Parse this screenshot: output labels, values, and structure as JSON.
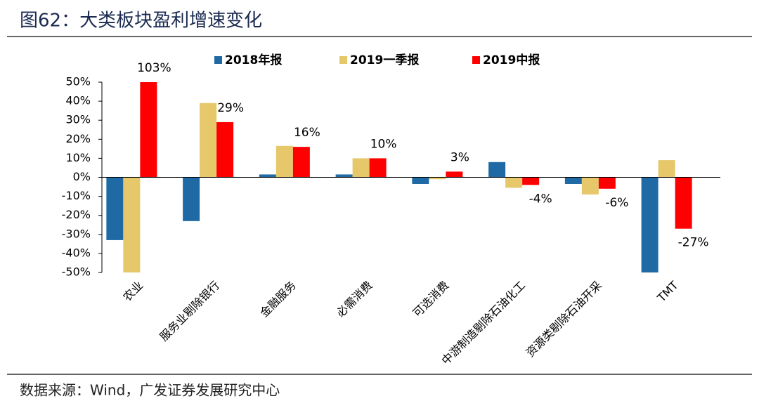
{
  "title": "图62：大类板块盈利增速变化",
  "source": "数据来源：Wind，广发证券发展研究中心",
  "chart_data": {
    "type": "bar",
    "categories": [
      "农业",
      "服务业剔除银行",
      "金融服务",
      "必需消费",
      "可选消费",
      "中游制造剔除石油化工",
      "资源类剔除石油开采",
      "TMT"
    ],
    "series": [
      {
        "name": "2018年报",
        "color": "#1f6aa5",
        "values": [
          -33,
          -23,
          1.5,
          1.5,
          -3.5,
          8,
          -3.5,
          -50
        ]
      },
      {
        "name": "2019一季报",
        "color": "#e6c76a",
        "values": [
          -50,
          39,
          16.5,
          10,
          -1,
          -5.5,
          -9,
          9
        ]
      },
      {
        "name": "2019中报",
        "color": "#ff0000",
        "values": [
          103,
          29,
          16,
          10,
          3,
          -4,
          -6,
          -27
        ],
        "value_labels": [
          "103%",
          "29%",
          "16%",
          "10%",
          "3%",
          "-4%",
          "-6%",
          "-27%"
        ]
      }
    ],
    "ylim": [
      -50,
      50
    ],
    "yticks": [
      {
        "value": -50,
        "label": "-50%"
      },
      {
        "value": -40,
        "label": "-40%"
      },
      {
        "value": -30,
        "label": "-30%"
      },
      {
        "value": -20,
        "label": "-20%"
      },
      {
        "value": -10,
        "label": "-10%"
      },
      {
        "value": 0,
        "label": "0%"
      },
      {
        "value": 10,
        "label": "10%"
      },
      {
        "value": 20,
        "label": "20%"
      },
      {
        "value": 30,
        "label": "30%"
      },
      {
        "value": 40,
        "label": "40%"
      },
      {
        "value": 50,
        "label": "50%"
      }
    ],
    "legend": "top"
  }
}
